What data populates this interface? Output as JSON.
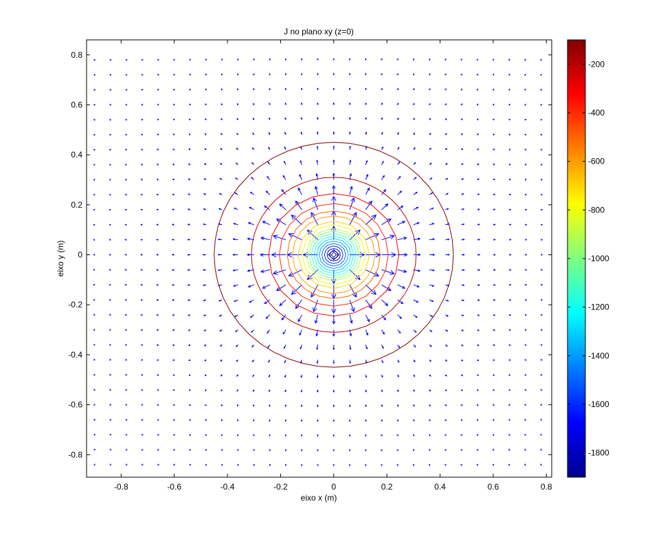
{
  "chart_data": [
    {
      "type": "contour",
      "title": "J no plano xy (z=0)",
      "xlabel": "eixo x (m)",
      "ylabel": "eixo y (m)",
      "xlim": [
        -0.93,
        0.82
      ],
      "ylim": [
        -0.89,
        0.86
      ],
      "xticks": [
        -0.8,
        -0.6,
        -0.4,
        -0.2,
        0,
        0.2,
        0.4,
        0.6,
        0.8
      ],
      "xtick_labels": [
        "-0.8",
        "-0.6",
        "-0.4",
        "-0.2",
        "0",
        "0.2",
        "0.4",
        "0.6",
        "0.8"
      ],
      "yticks": [
        -0.8,
        -0.6,
        -0.4,
        -0.2,
        0,
        0.2,
        0.4,
        0.6,
        0.8
      ],
      "ytick_labels": [
        "-0.8",
        "-0.6",
        "-0.4",
        "-0.2",
        "0",
        "0.2",
        "0.4",
        "0.6",
        "0.8"
      ],
      "grid": false,
      "contour_levels": [
        {
          "level": -100,
          "radius": 0.45
        },
        {
          "level": -200,
          "radius": 0.31
        },
        {
          "level": -300,
          "radius": 0.245
        },
        {
          "level": -400,
          "radius": 0.205
        },
        {
          "level": -500,
          "radius": 0.175
        },
        {
          "level": -600,
          "radius": 0.155
        },
        {
          "level": -700,
          "radius": 0.135
        },
        {
          "level": -800,
          "radius": 0.12
        },
        {
          "level": -900,
          "radius": 0.105
        },
        {
          "level": -1000,
          "radius": 0.095
        },
        {
          "level": -1100,
          "radius": 0.085
        },
        {
          "level": -1200,
          "radius": 0.075
        },
        {
          "level": -1300,
          "radius": 0.065
        },
        {
          "level": -1400,
          "radius": 0.055
        },
        {
          "level": -1500,
          "radius": 0.045
        },
        {
          "level": -1600,
          "radius": 0.035
        },
        {
          "level": -1700,
          "radius": 0.025
        },
        {
          "level": -1800,
          "radius": 0.015
        }
      ],
      "quiver": {
        "grid_start": -0.9,
        "grid_end": 0.8,
        "grid_step": 0.06,
        "direction": "radially outward from origin",
        "color": "#0000ff"
      },
      "colormap": "jet",
      "colorbar": {
        "range": [
          -1900,
          -100
        ],
        "ticks": [
          -1800,
          -1600,
          -1400,
          -1200,
          -1000,
          -800,
          -600,
          -400,
          -200
        ],
        "tick_labels": [
          "-1800",
          "-1600",
          "-1400",
          "-1200",
          "-1000",
          "-800",
          "-600",
          "-400",
          "-200"
        ],
        "location": "right"
      }
    }
  ]
}
